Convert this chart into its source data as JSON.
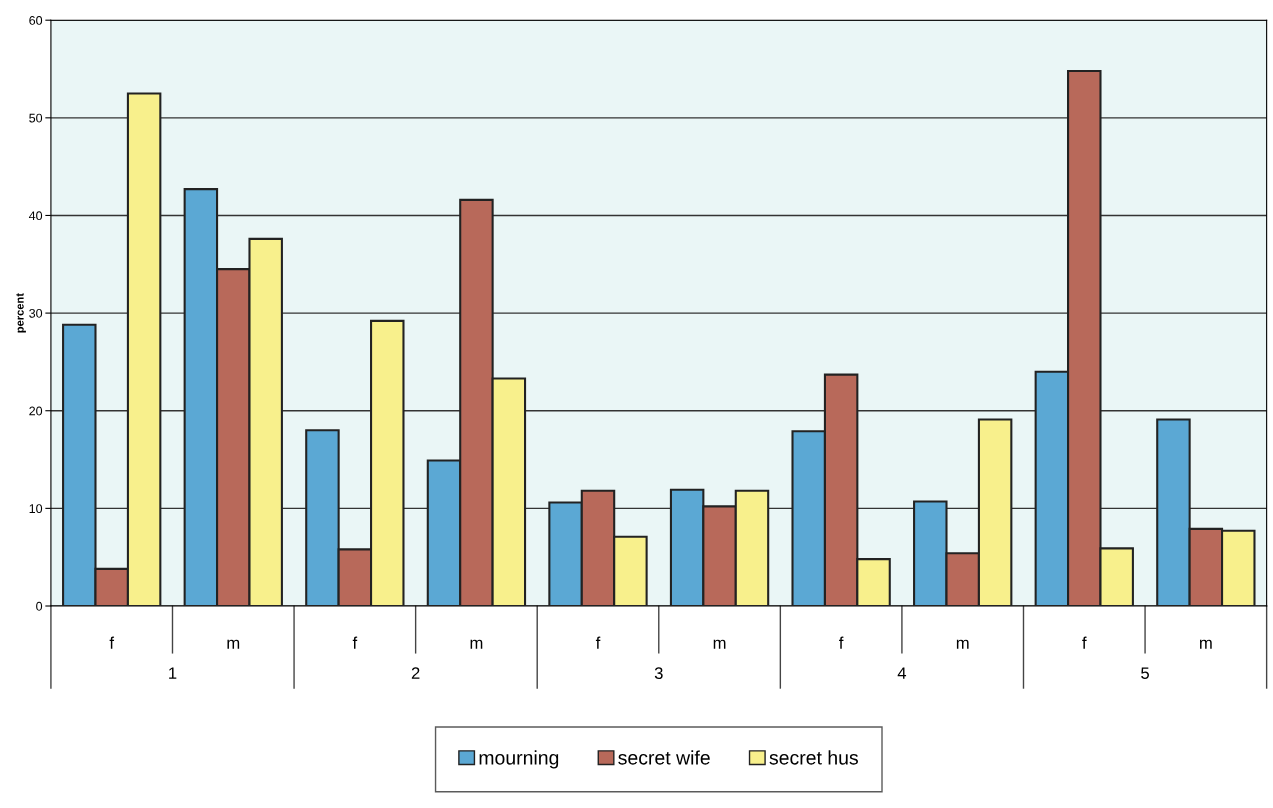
{
  "chart_data": {
    "type": "bar",
    "ylabel": "percent",
    "categories": [
      "f",
      "m",
      "f",
      "m",
      "f",
      "m",
      "f",
      "m",
      "f",
      "m"
    ],
    "annotations": [
      "1",
      "2",
      "3",
      "4",
      "5"
    ],
    "series": [
      {
        "name": "mourning",
        "color": "#5ba8d4",
        "values": [
          28.8,
          42.7,
          18.0,
          14.9,
          10.6,
          11.9,
          17.9,
          10.7,
          24.0,
          19.1
        ]
      },
      {
        "name": "secret wife",
        "color": "#b8695a",
        "values": [
          3.8,
          34.5,
          5.8,
          41.6,
          11.8,
          10.2,
          23.7,
          5.4,
          54.8,
          7.9
        ]
      },
      {
        "name": "secret hus",
        "color": "#f8f08c",
        "values": [
          52.5,
          37.6,
          29.2,
          23.3,
          7.1,
          11.8,
          4.8,
          19.1,
          5.9,
          7.7
        ]
      }
    ],
    "ylim": [
      0,
      60
    ],
    "yticks": [
      0,
      10,
      20,
      30,
      40,
      50,
      60
    ],
    "grid": "y",
    "legend": "bottom"
  }
}
